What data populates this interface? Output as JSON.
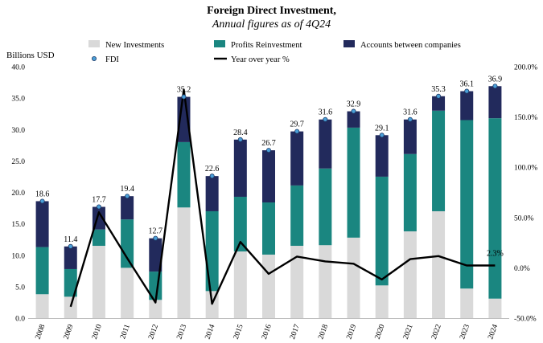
{
  "chart_data": {
    "type": "bar",
    "title": "Foreign Direct Investment,",
    "subtitle": "Annual figures as of 4Q24",
    "ylabel": "Billions USD",
    "ylim": [
      0,
      40
    ],
    "y_ticks": [
      "0.0",
      "5.0",
      "10.0",
      "15.0",
      "20.0",
      "25.0",
      "30.0",
      "35.0",
      "40.0"
    ],
    "y2lim": [
      -50,
      200
    ],
    "y2_ticks": [
      "-50.0%",
      "0.0%",
      "50.0%",
      "100.0%",
      "150.0%",
      "200.0%"
    ],
    "categories": [
      "2008",
      "2009",
      "2010",
      "2011",
      "2012",
      "2013",
      "2014",
      "2015",
      "2016",
      "2017",
      "2018",
      "2019",
      "2020",
      "2021",
      "2022",
      "2023",
      "2024"
    ],
    "series": [
      {
        "name": "New Investments",
        "color": "#d9d9d9",
        "values": [
          3.8,
          3.4,
          11.5,
          8.0,
          2.9,
          17.6,
          4.3,
          10.6,
          10.1,
          11.5,
          11.6,
          12.8,
          5.2,
          13.8,
          17.0,
          4.7,
          3.1
        ]
      },
      {
        "name": "Profits Reinvestment",
        "color": "#1a8680",
        "values": [
          7.5,
          4.4,
          2.6,
          7.7,
          4.5,
          10.4,
          12.7,
          8.7,
          8.3,
          9.6,
          12.2,
          17.5,
          17.3,
          12.3,
          16.0,
          26.8,
          28.7
        ]
      },
      {
        "name": "Accounts between companies",
        "color": "#222a5c",
        "values": [
          7.3,
          3.6,
          3.6,
          3.7,
          5.3,
          7.2,
          5.6,
          9.1,
          8.3,
          8.6,
          7.8,
          2.6,
          6.6,
          5.5,
          2.3,
          4.6,
          5.1
        ]
      }
    ],
    "fdi": {
      "name": "FDI",
      "color": "#4a9fd8",
      "values": [
        18.6,
        11.4,
        17.7,
        19.4,
        12.7,
        35.2,
        22.6,
        28.4,
        26.7,
        29.7,
        31.6,
        32.9,
        29.1,
        31.6,
        35.3,
        36.1,
        36.9
      ],
      "labels": [
        "18.6",
        "11.4",
        "17.7",
        "19.4",
        "12.7",
        "35.2",
        "22.6",
        "28.4",
        "26.7",
        "29.7",
        "31.6",
        "32.9",
        "29.1",
        "31.6",
        "35.3",
        "36.1",
        "36.9"
      ]
    },
    "yoy": {
      "name": "Year over year %",
      "color": "#000000",
      "values": [
        null,
        -38.7,
        55.3,
        9.6,
        -34.5,
        177.2,
        -35.8,
        25.7,
        -6.0,
        11.2,
        6.4,
        4.1,
        -11.6,
        8.6,
        11.7,
        2.3,
        2.3
      ],
      "end_label": "2.3%"
    }
  }
}
